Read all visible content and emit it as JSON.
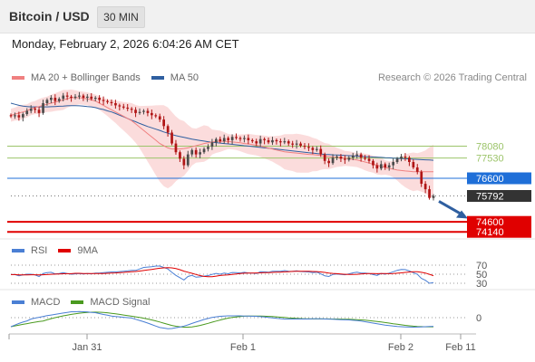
{
  "header": {
    "title": "Bitcoin / USD",
    "timeframe": "30 MIN"
  },
  "datetime": "Monday, February 2, 2026 6:04:26 AM CET",
  "legend_main": [
    {
      "label": "MA 20 + Bollinger Bands",
      "color": "#f08080"
    },
    {
      "label": "MA 50",
      "color": "#2f5fa0"
    }
  ],
  "research": "Research © 2026 Trading Central",
  "legend_rsi": [
    {
      "label": "RSI",
      "color": "#4a7fd4"
    },
    {
      "label": "9MA",
      "color": "#e00000"
    }
  ],
  "legend_macd": [
    {
      "label": "MACD",
      "color": "#4a7fd4"
    },
    {
      "label": "MACD Signal",
      "color": "#4a9a1f"
    }
  ],
  "chart_data": {
    "type": "candlestick",
    "symbol": "Bitcoin / USD",
    "interval": "30 MIN",
    "x_ticks": [
      "Jan 31",
      "Feb 1",
      "Feb 2",
      "Feb 11"
    ],
    "price_levels": [
      {
        "value": 78080,
        "label": "78080",
        "kind": "resistance",
        "color": "#9cc46a"
      },
      {
        "value": 77530,
        "label": "77530",
        "kind": "resistance",
        "color": "#9cc46a"
      },
      {
        "value": 76600,
        "label": "76600",
        "kind": "pivot",
        "color": "#1f6fd8"
      },
      {
        "value": 75792,
        "label": "75792",
        "kind": "last_price",
        "color": "#333333"
      },
      {
        "value": 74600,
        "label": "74600",
        "kind": "support",
        "color": "#e00000"
      },
      {
        "value": 74140,
        "label": "74140",
        "kind": "support",
        "color": "#e00000"
      }
    ],
    "y_range": [
      73900,
      80800
    ],
    "closes": [
      79450,
      79500,
      79400,
      79550,
      79700,
      79800,
      79750,
      79600,
      80050,
      80200,
      80300,
      80150,
      80250,
      80400,
      80350,
      80300,
      80350,
      80400,
      80300,
      80350,
      80250,
      80300,
      80200,
      80150,
      80100,
      80050,
      79950,
      79900,
      79850,
      79800,
      79750,
      79600,
      79650,
      79700,
      79600,
      79500,
      79450,
      79300,
      79000,
      78700,
      78200,
      77800,
      77500,
      77200,
      77700,
      77900,
      77700,
      77800,
      77950,
      78050,
      78250,
      78400,
      78300,
      78450,
      78350,
      78500,
      78450,
      78400,
      78450,
      78350,
      78300,
      78200,
      78400,
      78350,
      78250,
      78350,
      78300,
      78250,
      78300,
      78200,
      78150,
      78200,
      78100,
      78050,
      78000,
      77900,
      77950,
      77700,
      77400,
      77300,
      77550,
      77600,
      77500,
      77450,
      77550,
      77650,
      77700,
      77550,
      77500,
      77400,
      77200,
      77050,
      77250,
      77100,
      77200,
      77350,
      77500,
      77600,
      77550,
      77350,
      77100,
      76900,
      76350,
      76100,
      75700,
      75792
    ],
    "ma20": [
      79500,
      79550,
      79600,
      79650,
      79700,
      79800,
      79850,
      79900,
      79950,
      80000,
      80050,
      80100,
      80150,
      80200,
      80250,
      80300,
      80300,
      80300,
      80280,
      80250,
      80200,
      80150,
      80050,
      79950,
      79850,
      79750,
      79650,
      79550,
      79450,
      79350,
      79250,
      79100,
      78950,
      78800,
      78650,
      78500,
      78350,
      78200,
      78100,
      78000,
      77950,
      77950,
      77950,
      77970,
      78000,
      78050,
      78100,
      78150,
      78200,
      78230,
      78270,
      78290,
      78300,
      78300,
      78290,
      78270,
      78250,
      78230,
      78200,
      78180,
      78150,
      78120,
      78080,
      78040,
      77990,
      77950,
      77900,
      77860,
      77820,
      77800,
      77780,
      77760,
      77740,
      77720,
      77700,
      77690,
      77670,
      77650,
      77620,
      77600,
      77580,
      77560,
      77540,
      77520,
      77500,
      77470,
      77440,
      77400,
      77350,
      77300,
      77250,
      77200,
      77150,
      77100,
      77060,
      77020,
      76980,
      76960,
      76940,
      76920,
      76900,
      76900,
      76900,
      76900,
      76900,
      76900
    ],
    "ma50": [
      80050,
      80000,
      79950,
      79920,
      79900,
      79880,
      79880,
      79880,
      79880,
      79880,
      79890,
      79900,
      79910,
      79920,
      79930,
      79940,
      79940,
      79930,
      79920,
      79900,
      79880,
      79850,
      79800,
      79760,
      79700,
      79650,
      79580,
      79500,
      79430,
      79350,
      79270,
      79200,
      79120,
      79050,
      78980,
      78920,
      78860,
      78800,
      78730,
      78670,
      78610,
      78560,
      78520,
      78480,
      78440,
      78400,
      78370,
      78340,
      78310,
      78280,
      78260,
      78240,
      78220,
      78200,
      78180,
      78160,
      78140,
      78120,
      78100,
      78080,
      78060,
      78040,
      78020,
      78000,
      77980,
      77960,
      77940,
      77920,
      77900,
      77880,
      77860,
      77840,
      77820,
      77800,
      77780,
      77760,
      77740,
      77720,
      77700,
      77690,
      77680,
      77670,
      77660,
      77650,
      77640,
      77630,
      77620,
      77610,
      77600,
      77590,
      77580,
      77570,
      77560,
      77550,
      77540,
      77530,
      77520,
      77510,
      77500,
      77490,
      77480,
      77470,
      77460,
      77450,
      77440,
      77430
    ],
    "rsi_levels": [
      70,
      50,
      30
    ],
    "macd_zero_label": "0"
  }
}
